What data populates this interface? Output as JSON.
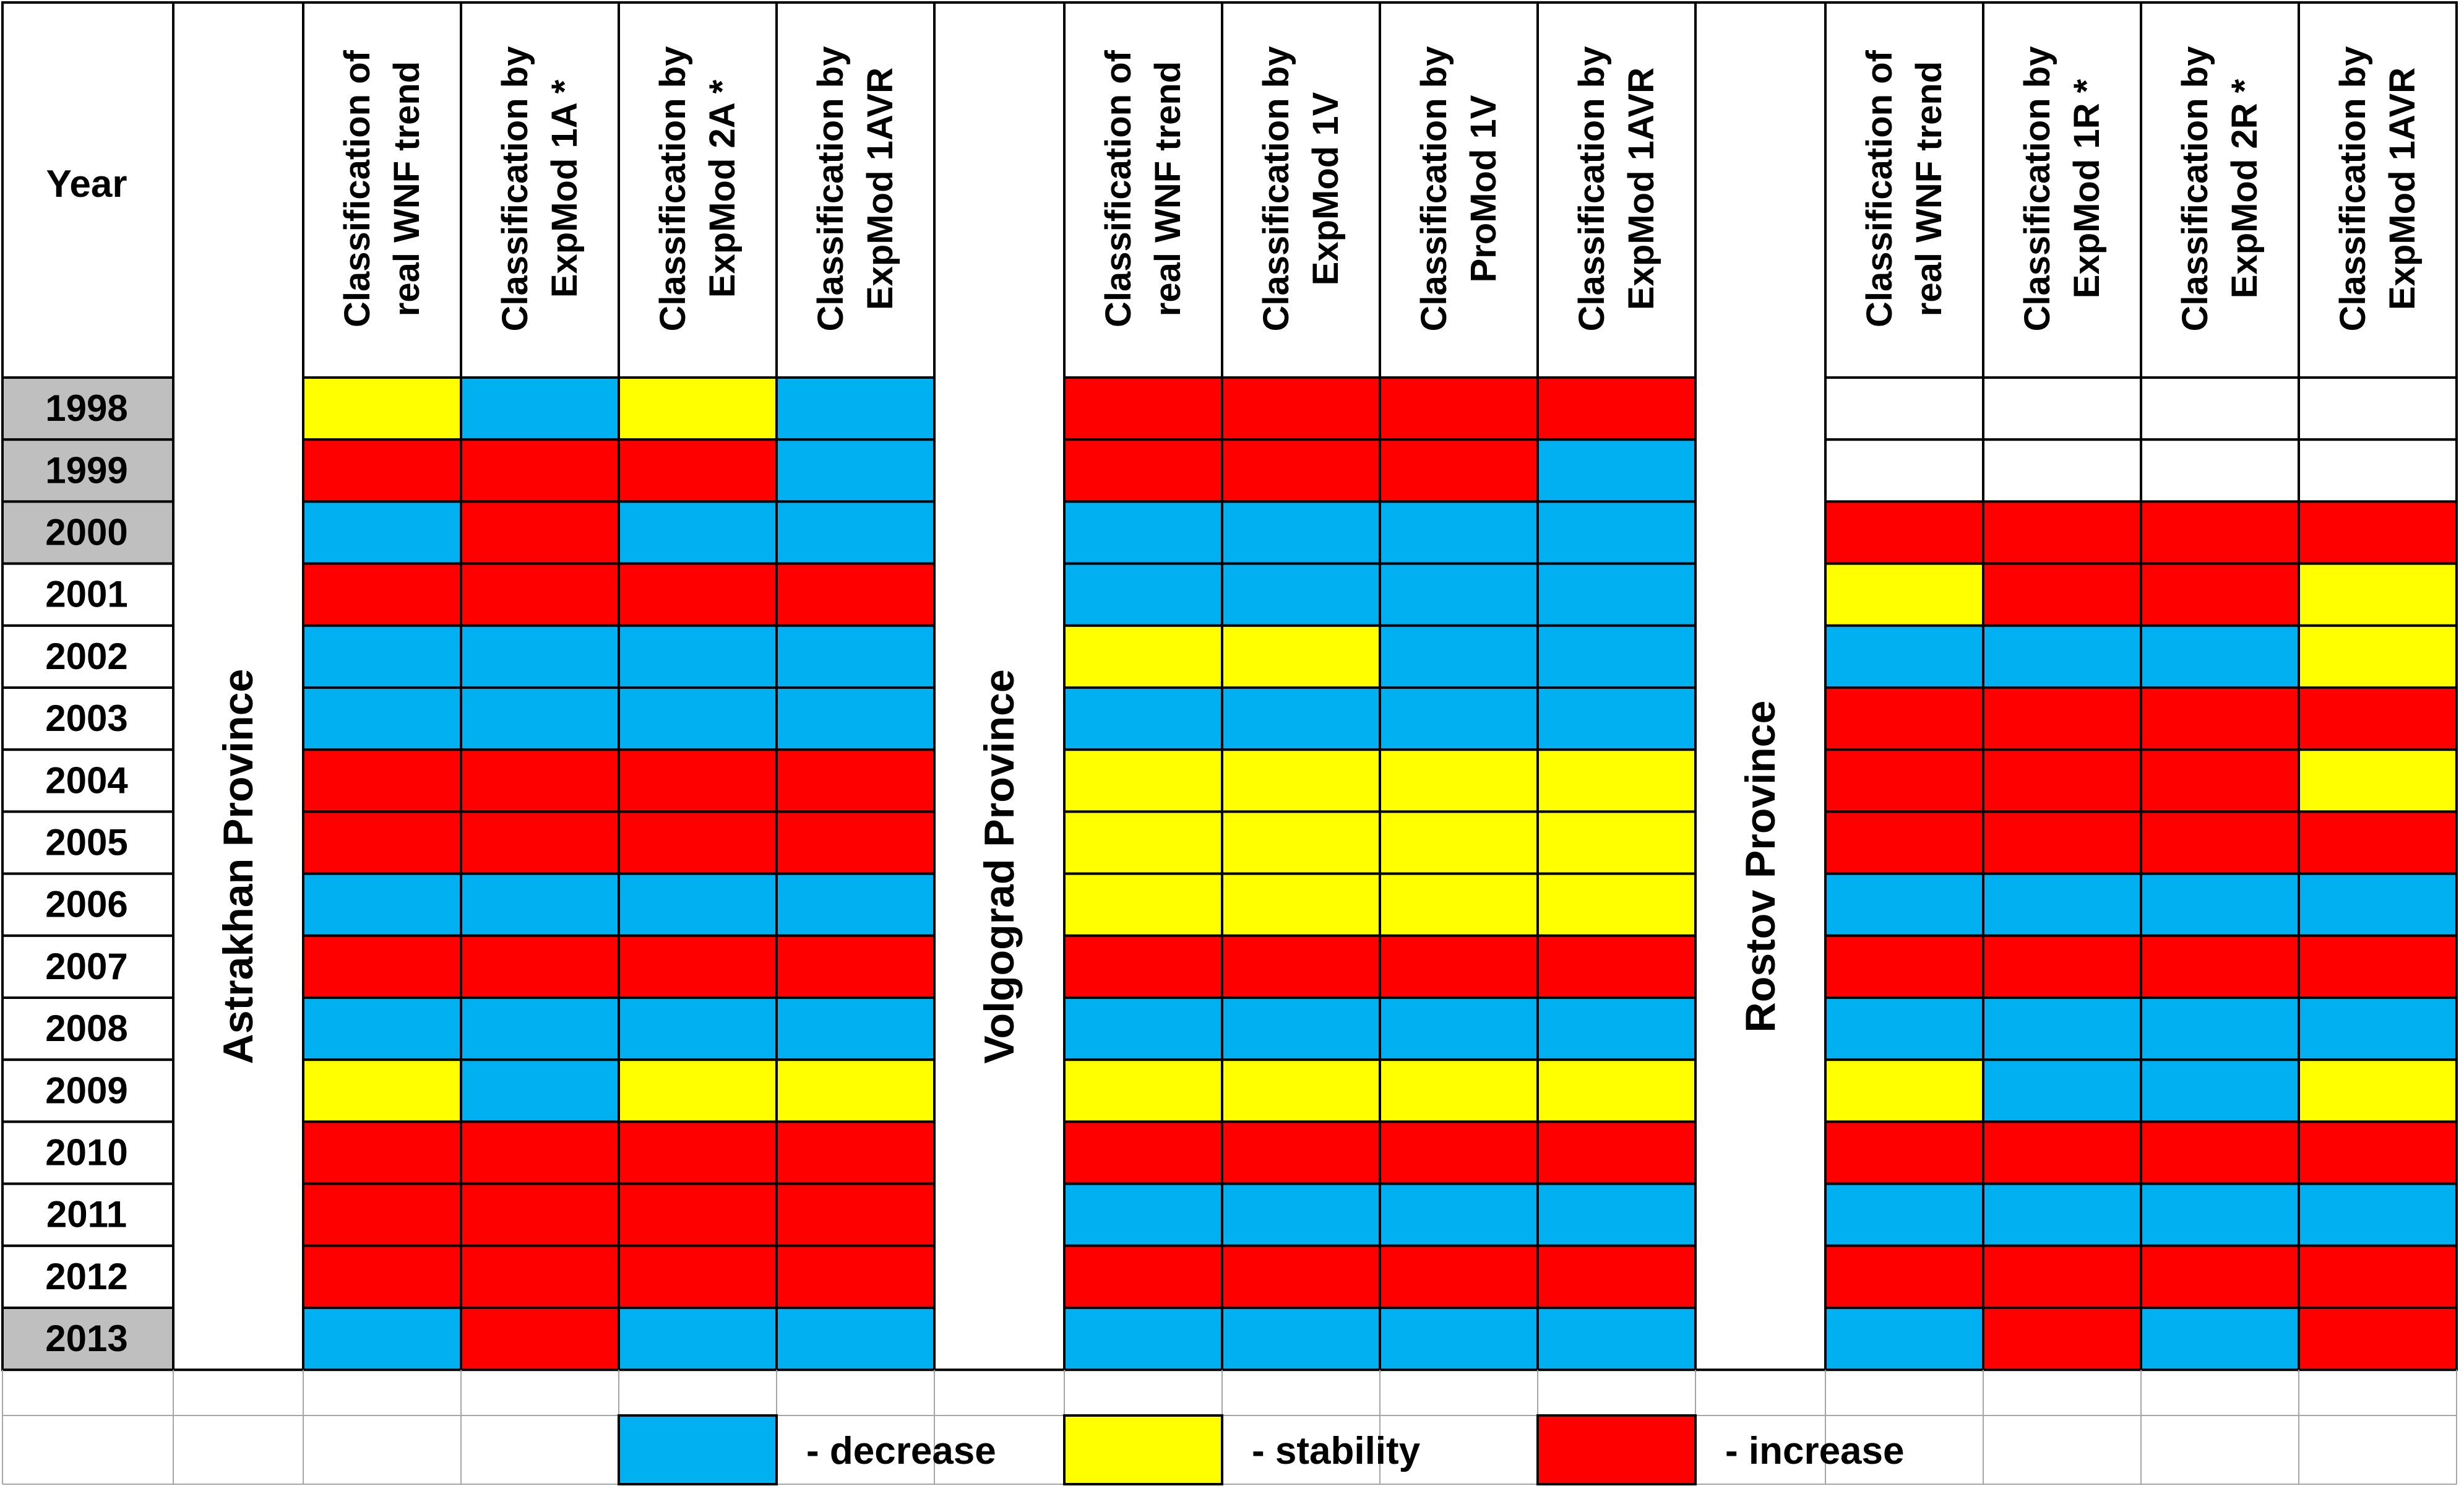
{
  "chart_data": {
    "type": "table",
    "title": "",
    "year_header": "Year",
    "years": [
      "1998",
      "1999",
      "2000",
      "2001",
      "2002",
      "2003",
      "2004",
      "2005",
      "2006",
      "2007",
      "2008",
      "2009",
      "2010",
      "2011",
      "2012",
      "2013"
    ],
    "highlighted_years": [
      "1998",
      "1999",
      "2000",
      "2013"
    ],
    "colors": {
      "decrease": "#00B0F0",
      "stability": "#FFFF00",
      "increase": "#FF0000",
      "empty": "#FFFFFF",
      "highlight": "#BFBFBF"
    },
    "provinces": [
      {
        "name": "Astrakhan Province",
        "columns": [
          {
            "label": [
              "Classification of",
              "real WNF trend"
            ],
            "values": [
              "stability",
              "increase",
              "decrease",
              "increase",
              "decrease",
              "decrease",
              "increase",
              "increase",
              "decrease",
              "increase",
              "decrease",
              "stability",
              "increase",
              "increase",
              "increase",
              "decrease"
            ]
          },
          {
            "label": [
              "Classification by",
              "ExpMod 1A *"
            ],
            "values": [
              "decrease",
              "increase",
              "increase",
              "increase",
              "decrease",
              "decrease",
              "increase",
              "increase",
              "decrease",
              "increase",
              "decrease",
              "decrease",
              "increase",
              "increase",
              "increase",
              "increase"
            ]
          },
          {
            "label": [
              "Classification by",
              "ExpMod 2A *"
            ],
            "values": [
              "stability",
              "increase",
              "decrease",
              "increase",
              "decrease",
              "decrease",
              "increase",
              "increase",
              "decrease",
              "increase",
              "decrease",
              "stability",
              "increase",
              "increase",
              "increase",
              "decrease"
            ]
          },
          {
            "label": [
              "Classification by",
              "ExpMod 1AVR"
            ],
            "values": [
              "decrease",
              "decrease",
              "decrease",
              "increase",
              "decrease",
              "decrease",
              "increase",
              "increase",
              "decrease",
              "increase",
              "decrease",
              "stability",
              "increase",
              "increase",
              "increase",
              "decrease"
            ]
          }
        ]
      },
      {
        "name": "Volgograd Province",
        "columns": [
          {
            "label": [
              "Classification of",
              "real WNF trend"
            ],
            "values": [
              "increase",
              "increase",
              "decrease",
              "decrease",
              "stability",
              "decrease",
              "stability",
              "stability",
              "stability",
              "increase",
              "decrease",
              "stability",
              "increase",
              "decrease",
              "increase",
              "decrease"
            ]
          },
          {
            "label": [
              "Classification by",
              "ExpMod 1V"
            ],
            "values": [
              "increase",
              "increase",
              "decrease",
              "decrease",
              "stability",
              "decrease",
              "stability",
              "stability",
              "stability",
              "increase",
              "decrease",
              "stability",
              "increase",
              "decrease",
              "increase",
              "decrease"
            ]
          },
          {
            "label": [
              "Classification by",
              "ProMod 1V"
            ],
            "values": [
              "increase",
              "increase",
              "decrease",
              "decrease",
              "decrease",
              "decrease",
              "stability",
              "stability",
              "stability",
              "increase",
              "decrease",
              "stability",
              "increase",
              "decrease",
              "increase",
              "decrease"
            ]
          },
          {
            "label": [
              "Classification by",
              "ExpMod 1AVR"
            ],
            "values": [
              "increase",
              "decrease",
              "decrease",
              "decrease",
              "decrease",
              "decrease",
              "stability",
              "stability",
              "stability",
              "increase",
              "decrease",
              "stability",
              "increase",
              "decrease",
              "increase",
              "decrease"
            ]
          }
        ]
      },
      {
        "name": "Rostov Province",
        "columns": [
          {
            "label": [
              "Classification of",
              "real WNF trend"
            ],
            "values": [
              "empty",
              "empty",
              "increase",
              "stability",
              "decrease",
              "increase",
              "increase",
              "increase",
              "decrease",
              "increase",
              "decrease",
              "stability",
              "increase",
              "decrease",
              "increase",
              "decrease"
            ]
          },
          {
            "label": [
              "Classification by",
              "ExpMod 1R *"
            ],
            "values": [
              "empty",
              "empty",
              "increase",
              "increase",
              "decrease",
              "increase",
              "increase",
              "increase",
              "decrease",
              "increase",
              "decrease",
              "decrease",
              "increase",
              "decrease",
              "increase",
              "increase"
            ]
          },
          {
            "label": [
              "Classification by",
              "ExpMod 2R *"
            ],
            "values": [
              "empty",
              "empty",
              "increase",
              "increase",
              "decrease",
              "increase",
              "increase",
              "increase",
              "decrease",
              "increase",
              "decrease",
              "decrease",
              "increase",
              "decrease",
              "increase",
              "decrease"
            ]
          },
          {
            "label": [
              "Classification by",
              "ExpMod 1AVR"
            ],
            "values": [
              "empty",
              "empty",
              "increase",
              "stability",
              "stability",
              "increase",
              "stability",
              "increase",
              "decrease",
              "increase",
              "decrease",
              "stability",
              "increase",
              "decrease",
              "increase",
              "increase"
            ]
          }
        ]
      }
    ],
    "legend": [
      {
        "key": "decrease",
        "label": "- decrease"
      },
      {
        "key": "stability",
        "label": "- stability"
      },
      {
        "key": "increase",
        "label": "- increase"
      }
    ]
  }
}
